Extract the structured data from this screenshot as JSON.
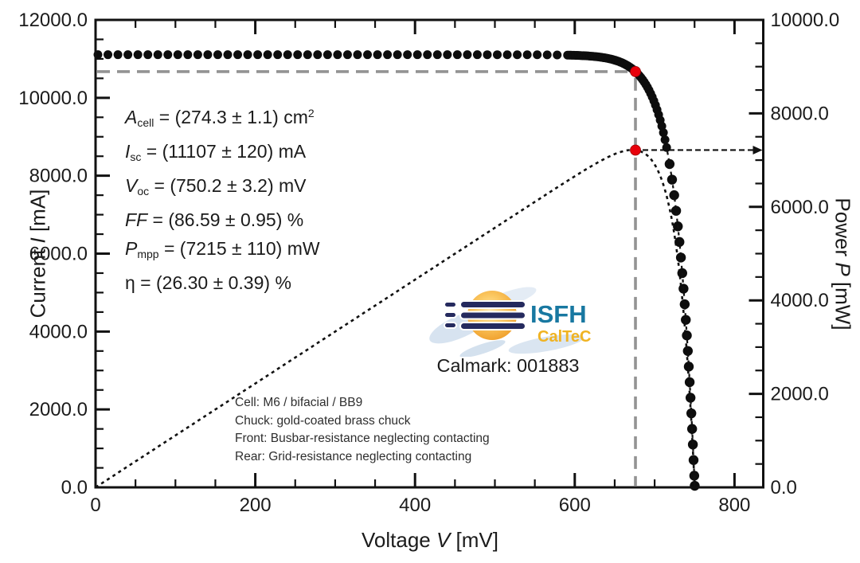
{
  "chart_data": {
    "type": "scatter",
    "title": "",
    "x_axis": {
      "label_pre": "Voltage ",
      "label_var": "V",
      "label_post": " [mV]",
      "min": 0,
      "max": 836,
      "major_step": 200,
      "minor_step": 50,
      "tick_labels": [
        "0",
        "200",
        "400",
        "600",
        "800"
      ]
    },
    "y_left": {
      "label_pre": "Current ",
      "label_var": "I",
      "label_post": " [mA]",
      "min": 0,
      "max": 12000,
      "major_step": 2000,
      "minor_step": 500,
      "tick_labels": [
        "0.0",
        "2000.0",
        "4000.0",
        "6000.0",
        "8000.0",
        "10000.0",
        "12000.0"
      ]
    },
    "y_right": {
      "label_pre": "Power ",
      "label_var": "P",
      "label_post": " [mW]",
      "min": 0,
      "max": 10000,
      "major_step": 2000,
      "minor_step": 500,
      "tick_labels": [
        "0.0",
        "2000.0",
        "4000.0",
        "6000.0",
        "8000.0",
        "10000.0"
      ]
    },
    "grid": false,
    "legend": "none",
    "series": [
      {
        "name": "iv-curve",
        "style": "scatter-dots",
        "color": "#0d0d0d"
      },
      {
        "name": "power-curve",
        "style": "dotted-line",
        "color": "#111111"
      }
    ],
    "model": {
      "isc_mA": 11107,
      "voc_mV": 750.2,
      "vmpp_mV": 676,
      "impp_mA": 10673,
      "pmpp_mW": 7215,
      "diode_i0_mA": 434,
      "diode_vt_mV": 22.9
    },
    "marker_zones": {
      "flat": {
        "v_from": 3,
        "v_to": 580,
        "step_mV": 12.5,
        "radius": 5.5
      },
      "dense": {
        "v_from": 591,
        "v_to": 716,
        "step_mV": 2,
        "radius": 5.5
      },
      "steep": {
        "i_from": 8300,
        "i_to": 100,
        "step_mA": 400,
        "radius": 6.2
      }
    },
    "sampled_iv_points_V_mA": [
      [
        0,
        11107
      ],
      [
        50,
        11106
      ],
      [
        100,
        11105
      ],
      [
        150,
        11104
      ],
      [
        200,
        11103
      ],
      [
        250,
        11102
      ],
      [
        300,
        11101
      ],
      [
        350,
        11100
      ],
      [
        400,
        11099
      ],
      [
        450,
        11097
      ],
      [
        500,
        11095
      ],
      [
        550,
        11093
      ],
      [
        600,
        11091
      ],
      [
        625,
        11060
      ],
      [
        650,
        10968
      ],
      [
        665,
        10839
      ],
      [
        676,
        10673
      ],
      [
        690,
        10307
      ],
      [
        700,
        9868
      ],
      [
        710,
        9189
      ],
      [
        715,
        8740
      ],
      [
        720,
        8138
      ],
      [
        725,
        7413
      ],
      [
        730,
        6511
      ],
      [
        735,
        5391
      ],
      [
        740,
        3998
      ],
      [
        745,
        2262
      ],
      [
        748,
        1016
      ],
      [
        750.2,
        0
      ]
    ],
    "sampled_power_points_V_mW": [
      [
        0,
        0
      ],
      [
        100,
        1110
      ],
      [
        200,
        2221
      ],
      [
        300,
        3330
      ],
      [
        400,
        4440
      ],
      [
        500,
        5548
      ],
      [
        600,
        6655
      ],
      [
        650,
        7129
      ],
      [
        676,
        7215
      ],
      [
        690,
        7112
      ],
      [
        700,
        6908
      ],
      [
        710,
        6524
      ],
      [
        715,
        6249
      ],
      [
        720,
        5859
      ],
      [
        725,
        5374
      ],
      [
        730,
        4753
      ],
      [
        735,
        3962
      ],
      [
        740,
        2959
      ],
      [
        745,
        1685
      ],
      [
        748,
        760
      ],
      [
        750.2,
        0
      ]
    ],
    "key_points": {
      "isc": [
        0,
        11107
      ],
      "voc": [
        750.2,
        0
      ],
      "mpp_on_iv": [
        676,
        10673
      ],
      "mpp_on_power": [
        676,
        7215
      ]
    },
    "colors": {
      "marker": "#0d0d0d",
      "mpp_red": "#e8000b",
      "guide_gray": "#939393",
      "axis": "#111111"
    }
  },
  "panel": {
    "params": [
      {
        "v": "A",
        "italic": true,
        "sub": "cell",
        "rest": " = (274.3 ± 1.1) cm",
        "sup": "2"
      },
      {
        "v": "I",
        "italic": true,
        "sub": "sc",
        "rest": " = (11107 ± 120) mA",
        "sup": ""
      },
      {
        "v": "V",
        "italic": true,
        "sub": "oc",
        "rest": " = (750.2 ± 3.2) mV",
        "sup": ""
      },
      {
        "v": "FF",
        "italic": true,
        "sub": "",
        "rest": " = (86.59 ± 0.95) %",
        "sup": ""
      },
      {
        "v": "P",
        "italic": true,
        "sub": "mpp",
        "rest": " = (7215 ± 110) mW",
        "sup": ""
      },
      {
        "v": "η",
        "italic": false,
        "sub": "",
        "rest": " = (26.30 ± 0.39) %",
        "sup": ""
      }
    ]
  },
  "logo": {
    "org": "ISFH",
    "unit": "CalTeC",
    "colors": {
      "org_blue": "#1878a1",
      "unit_gold": "#f0b322",
      "sun_inner": "#ffd983",
      "sun_outer": "#f09f2c",
      "bars_navy": "#252a5e",
      "brush_blue": "#b6cce4"
    }
  },
  "footer": {
    "calmark": "Calmark: 001883",
    "cell_info_lines": [
      "Cell: M6 / bifacial / BB9",
      "Chuck: gold-coated brass chuck",
      "Front: Busbar-resistance neglecting contacting",
      "Rear: Grid-resistance neglecting contacting"
    ]
  }
}
